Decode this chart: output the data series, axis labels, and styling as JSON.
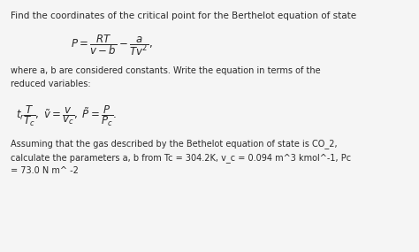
{
  "bg_color": "#f5f5f5",
  "text_color": "#2a2a2a",
  "title_text": "Find the coordinates of the critical point for the Berthelot equation of state",
  "equation1": "$P = \\dfrac{RT}{v - b} - \\dfrac{a}{Tv^2},$",
  "body_text": "where a, b are considered constants. Write the equation in terms of the\nreduced variables:",
  "equation2": "$t_r\\dfrac{T}{T_c},\\; \\tilde{v} = \\dfrac{v}{v_c},\\; \\tilde{P} = \\dfrac{P}{P_c}.$",
  "footer_text": "Assuming that the gas described by the Bethelot equation of state is CO_2,\ncalculate the parameters a, b from Tc = 304.2K, v_c = 0.094 m^3 kmol^-1, Pc\n= 73.0 N m^ -2",
  "font_size_title": 7.5,
  "font_size_body": 7.0,
  "font_size_eq": 8.5,
  "font_size_footer": 7.0
}
